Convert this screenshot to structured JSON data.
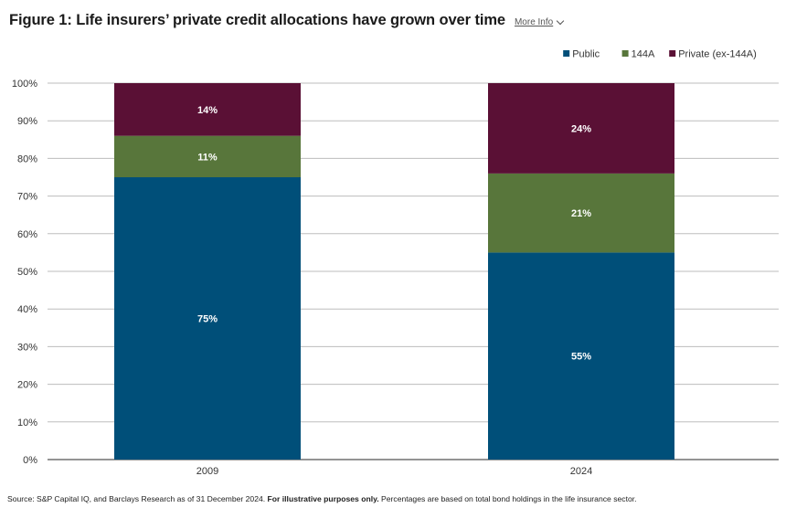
{
  "header": {
    "title": "Figure 1: Life insurers’ private credit allocations have grown over time",
    "more_info": "More Info"
  },
  "chart_data": {
    "type": "bar",
    "stacked": true,
    "title": "Figure 1: Life insurers’ private credit allocations have grown over time",
    "xlabel": "",
    "ylabel": "",
    "categories": [
      "2009",
      "2024"
    ],
    "series": [
      {
        "name": "Public",
        "color": "#004f79",
        "values": [
          75,
          55
        ],
        "labels": [
          "75%",
          "55%"
        ]
      },
      {
        "name": "144A",
        "color": "#58763b",
        "values": [
          11,
          21
        ],
        "labels": [
          "11%",
          "21%"
        ]
      },
      {
        "name": "Private (ex-144A)",
        "color": "#5a1035",
        "values": [
          14,
          24
        ],
        "labels": [
          "14%",
          "24%"
        ]
      }
    ],
    "ylim": [
      0,
      100
    ],
    "yticks": [
      0,
      10,
      20,
      30,
      40,
      50,
      60,
      70,
      80,
      90,
      100
    ],
    "ytick_labels": [
      "0%",
      "10%",
      "20%",
      "30%",
      "40%",
      "50%",
      "60%",
      "70%",
      "80%",
      "90%",
      "100%"
    ],
    "grid": true,
    "legend_position": "top-right"
  },
  "footer": {
    "source_prefix": "Source: S&P Capital IQ, and Barclays Research as of 31 December 2024. ",
    "source_bold": "For illustrative purposes only.",
    "source_suffix": " Percentages are based on total bond holdings in the life insurance sector."
  }
}
